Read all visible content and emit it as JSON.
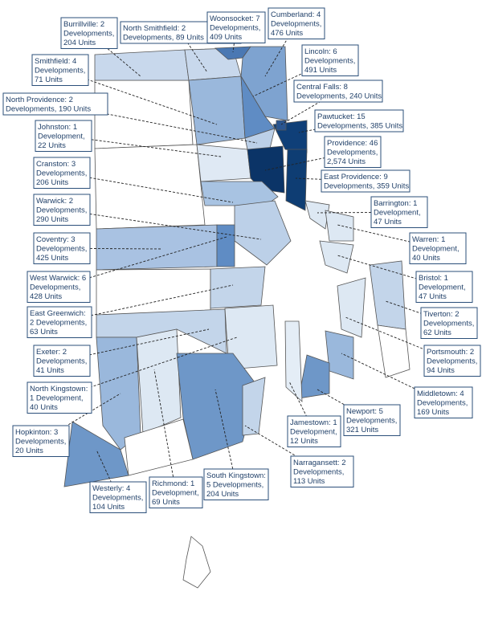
{
  "labels": [
    {
      "lines": [
        "Burrillville: 2",
        "Developments,",
        "204 Units"
      ]
    },
    {
      "lines": [
        "North Smithfield: 2",
        "Developments, 89 Units"
      ]
    },
    {
      "lines": [
        "Woonsocket: 7",
        "Developments,",
        "409 Units"
      ]
    },
    {
      "lines": [
        "Cumberland: 4",
        "Developments,",
        "476 Units"
      ]
    },
    {
      "lines": [
        "Smithfield: 4",
        "Developments,",
        "71 Units"
      ]
    },
    {
      "lines": [
        "Lincoln: 6",
        "Developments,",
        "491 Units"
      ]
    },
    {
      "lines": [
        "North Providence: 2",
        "Developments, 190 Units"
      ]
    },
    {
      "lines": [
        "Central Falls: 8",
        "Developments, 240 Units"
      ]
    },
    {
      "lines": [
        "Johnston: 1",
        "Development,",
        "22 Units"
      ]
    },
    {
      "lines": [
        "Pawtucket: 15",
        "Developments, 385 Units"
      ]
    },
    {
      "lines": [
        "Providence: 46",
        "Developments,",
        "2,574 Units"
      ]
    },
    {
      "lines": [
        "Cranston: 3",
        "Developments,",
        "206 Units"
      ]
    },
    {
      "lines": [
        "East Providence: 9",
        "Developments, 359 Units"
      ]
    },
    {
      "lines": [
        "Warwick: 2",
        "Developments,",
        "290 Units"
      ]
    },
    {
      "lines": [
        "Barrington: 1",
        "Development,",
        "47 Units"
      ]
    },
    {
      "lines": [
        "Coventry: 3",
        "Developments,",
        "425 Units"
      ]
    },
    {
      "lines": [
        "Warren: 1",
        "Development,",
        "40 Units"
      ]
    },
    {
      "lines": [
        "West Warwick: 6",
        "Developments,",
        "428 Units"
      ]
    },
    {
      "lines": [
        "Bristol: 1",
        "Development,",
        "47 Units"
      ]
    },
    {
      "lines": [
        "East Greenwich:",
        "2 Developments,",
        "63 Units"
      ]
    },
    {
      "lines": [
        "Tiverton: 2",
        "Developments,",
        "62 Units"
      ]
    },
    {
      "lines": [
        "Exeter: 2",
        "Developments,",
        "41 Units"
      ]
    },
    {
      "lines": [
        "Portsmouth: 2",
        "Developments,",
        "94 Units"
      ]
    },
    {
      "lines": [
        "North Kingstown:",
        "1 Development,",
        "40 Units"
      ]
    },
    {
      "lines": [
        "Middletown: 4",
        "Developments,",
        "169 Units"
      ]
    },
    {
      "lines": [
        "Hopkinton: 3",
        "Developments,",
        "20 Units"
      ]
    },
    {
      "lines": [
        "Jamestown: 1",
        "Development,",
        "12 Units"
      ]
    },
    {
      "lines": [
        "Newport: 5",
        "Developments,",
        "321 Units"
      ]
    },
    {
      "lines": [
        "Narragansett: 2",
        "Developments,",
        "113 Units"
      ]
    },
    {
      "lines": [
        "South Kingstown:",
        "5 Developments,",
        "204 Units"
      ]
    },
    {
      "lines": [
        "Westerly: 4",
        "Developments,",
        "104 Units"
      ]
    },
    {
      "lines": [
        "Richmond: 1",
        "Development,",
        "69 Units"
      ]
    }
  ]
}
